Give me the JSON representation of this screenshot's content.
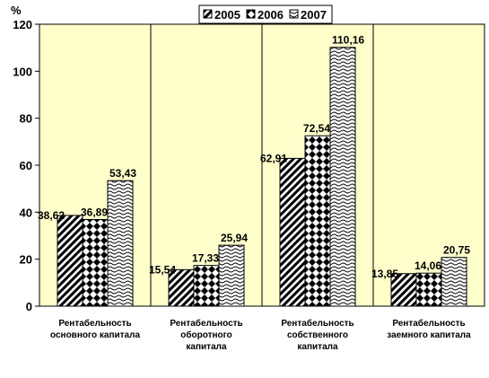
{
  "chart_data": {
    "type": "bar",
    "ylabel": "%",
    "ylim": [
      0,
      120
    ],
    "yticks": [
      0,
      20,
      40,
      60,
      80,
      100,
      120
    ],
    "grid": "vertical category separators",
    "legend": "top-center",
    "categories": [
      [
        "Рентабельность",
        "основного капитала"
      ],
      [
        "Рентабельность",
        "оборотного",
        "капитала"
      ],
      [
        "Рентабельность",
        "собственного",
        "капитала"
      ],
      [
        "Рентабельность",
        "заемного капитала"
      ]
    ],
    "series": [
      {
        "name": "2005",
        "pattern": "diagonal-stripes",
        "values": [
          38.62,
          15.54,
          62.91,
          13.85
        ],
        "labels": [
          "38,62",
          "15,54",
          "62,91",
          "13,85"
        ]
      },
      {
        "name": "2006",
        "pattern": "diamonds",
        "values": [
          36.89,
          17.33,
          72.54,
          14.06
        ],
        "labels": [
          "36,89",
          "17,33",
          "72,54",
          "14,06"
        ]
      },
      {
        "name": "2007",
        "pattern": "waves",
        "values": [
          53.43,
          25.94,
          110.16,
          20.75
        ],
        "labels": [
          "53,43",
          "25,94",
          "110,16",
          "20,75"
        ]
      }
    ]
  },
  "colors": {
    "plot_bg": "#ffffcc",
    "bar_fill": "#ffffff",
    "ink": "#000000"
  }
}
